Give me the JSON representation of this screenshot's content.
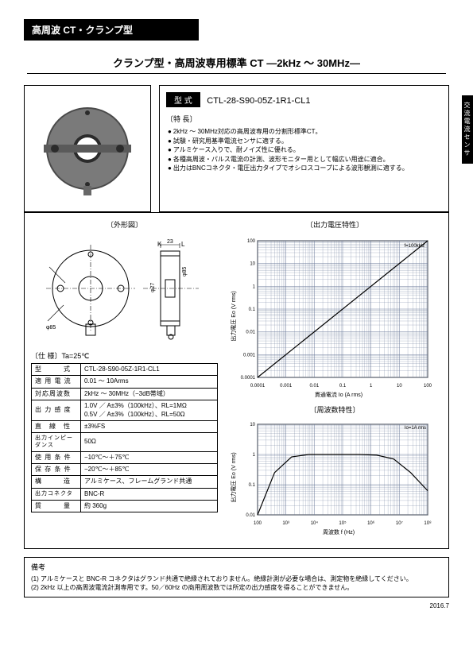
{
  "header": {
    "category": "高周波 CT・クランプ型"
  },
  "title": "クランプ型・高周波専用標準 CT ―2kHz ～ 30MHz―",
  "sidetab": "交流電流センサ",
  "model": {
    "label": "型 式",
    "value": "CTL-28-S90-05Z-1R1-CL1"
  },
  "features": {
    "head": "〔特 長〕",
    "items": [
      "2kHz ～ 30MHz対応の高周波専用の分割形標準CT。",
      "試験・研究用基準電流センサに適する。",
      "アルミケース入りで、耐ノイズ性に優れる。",
      "各種高周波・パルス電流の計測、波形モニター用として幅広い用途に適合。",
      "出力はBNCコネクタ・電圧出力タイプでオシロスコープによる波形観測に適する。"
    ]
  },
  "outline": {
    "title": "〔外形図〕",
    "K": "K",
    "L": "L",
    "dim_23": "23",
    "phi85": "φ85",
    "phi27": "φ27"
  },
  "spec": {
    "head": "〔仕 様〕Ta=25℃",
    "rows": [
      [
        "型　　　式",
        "CTL-28-S90-05Z-1R1-CL1"
      ],
      [
        "適 用 電 流",
        "0.01 ～ 10Arms"
      ],
      [
        "対応周波数",
        "2kHz ～ 30MHz（−3dB帯域）"
      ],
      [
        "出 力 感 度",
        "1.0V ／ A±3%（100kHz）、RL=1MΩ\n0.5V ／ A±3%（100kHz）、RL=50Ω"
      ],
      [
        "直　線　性",
        "±3%FS"
      ],
      [
        "出力インピーダンス",
        "50Ω"
      ],
      [
        "使 用 条 件",
        "−10℃～＋75℃"
      ],
      [
        "保 存 条 件",
        "−20℃～＋85℃"
      ],
      [
        "構　　　造",
        "アルミケース、フレームグランド共通"
      ],
      [
        "出力コネクタ",
        "BNC-R"
      ],
      [
        "質　　　量",
        "約 360g"
      ]
    ]
  },
  "chart1": {
    "title": "〔出力電圧特性〕",
    "note": "f=100kHz",
    "ylabel": "出力電圧 Eo (V rms)",
    "xlabel": "貫通電流 Io (A rms)",
    "xticks": [
      "0.0001",
      "0.001",
      "0.01",
      "0.1",
      "1",
      "10",
      "100"
    ],
    "yticks": [
      "0.0001",
      "0.001",
      "0.01",
      "0.1",
      "1",
      "10",
      "100"
    ],
    "grid_color": "#6b7a99",
    "line_color": "#000000",
    "x_log_min": -4,
    "x_log_max": 2,
    "y_log_min": -4,
    "y_log_max": 2,
    "points": [
      [
        -4,
        -4
      ],
      [
        2,
        2
      ]
    ]
  },
  "chart2": {
    "title": "〔周波数特性〕",
    "note": "Io=1A rms",
    "ylabel": "出力電圧 Eo (V rms)",
    "xlabel": "周波数 f (Hz)",
    "xticks": [
      "100",
      "10³",
      "10⁴",
      "10⁵",
      "10⁶",
      "10⁷",
      "10⁸"
    ],
    "yticks": [
      "0.01",
      "0.1",
      "1",
      "10"
    ],
    "grid_color": "#6b7a99",
    "line_color": "#000000",
    "x_log_min": 2,
    "x_log_max": 8,
    "y_log_min": -2,
    "y_log_max": 1,
    "points_y": [
      -2,
      -0.6,
      -0.08,
      0,
      0,
      0,
      0,
      -0.02,
      -0.15,
      -0.6,
      -1.2
    ]
  },
  "remarks": {
    "head": "備考",
    "r1": "(1) アルミケースと BNC-R コネクタはグランド共通で絶縁されておりません。絶縁計測が必要な場合は、測定物を絶縁してください。",
    "r2": "(2) 2kHz 以上の高周波電流計測専用です。50／60Hz の商用周波数では所定の出力感度を得ることができません。"
  },
  "footer": {
    "date": "2016.7"
  }
}
